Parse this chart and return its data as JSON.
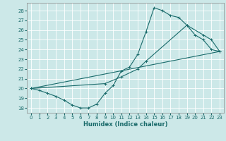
{
  "xlabel": "Humidex (Indice chaleur)",
  "bg_color": "#cce8e8",
  "grid_color": "#b0d4d4",
  "line_color": "#1a6b6b",
  "xlim": [
    -0.5,
    23.5
  ],
  "ylim": [
    17.5,
    28.8
  ],
  "xticks": [
    0,
    1,
    2,
    3,
    4,
    5,
    6,
    7,
    8,
    9,
    10,
    11,
    12,
    13,
    14,
    15,
    16,
    17,
    18,
    19,
    20,
    21,
    22,
    23
  ],
  "yticks": [
    18,
    19,
    20,
    21,
    22,
    23,
    24,
    25,
    26,
    27,
    28
  ],
  "curve_zigzag_x": [
    0,
    1,
    2,
    3,
    4,
    5,
    6,
    7,
    8,
    9,
    10,
    11,
    12,
    13,
    14,
    15,
    16,
    17,
    18,
    19,
    20,
    21,
    22,
    23
  ],
  "curve_zigzag_y": [
    20.0,
    19.8,
    19.5,
    19.2,
    18.8,
    18.3,
    18.0,
    18.0,
    18.4,
    19.5,
    20.3,
    21.8,
    22.2,
    23.5,
    25.8,
    28.3,
    28.0,
    27.5,
    27.3,
    26.5,
    25.5,
    25.0,
    24.0,
    23.8
  ],
  "curve_mid_x": [
    0,
    9,
    11,
    13,
    14,
    19,
    21,
    22,
    23
  ],
  "curve_mid_y": [
    20.0,
    20.5,
    21.2,
    22.0,
    22.8,
    26.5,
    25.5,
    25.0,
    23.8
  ],
  "curve_line_x": [
    0,
    23
  ],
  "curve_line_y": [
    20.0,
    23.8
  ]
}
